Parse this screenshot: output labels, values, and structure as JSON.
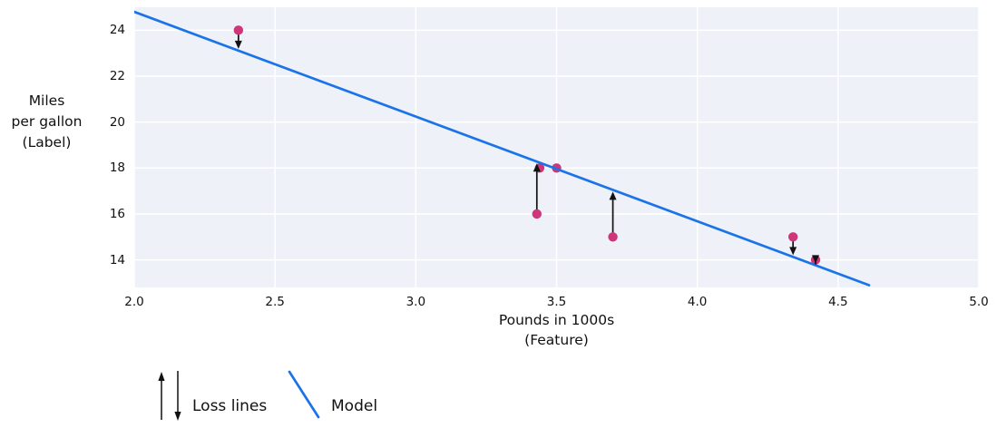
{
  "chart_data": {
    "type": "scatter",
    "title": "",
    "xlabel_lines": [
      "Pounds in 1000s",
      "(Feature)"
    ],
    "ylabel_lines": [
      "Miles",
      "per gallon",
      "(Label)"
    ],
    "xlim": [
      2.0,
      5.0
    ],
    "ylim": [
      12.8,
      25.0
    ],
    "grid": true,
    "xticks": [
      {
        "value": 2.0,
        "label": "2.0"
      },
      {
        "value": 2.5,
        "label": "2.5"
      },
      {
        "value": 3.0,
        "label": "3.0"
      },
      {
        "value": 3.5,
        "label": "3.5"
      },
      {
        "value": 4.0,
        "label": "4.0"
      },
      {
        "value": 4.5,
        "label": "4.5"
      },
      {
        "value": 5.0,
        "label": "5.0"
      }
    ],
    "yticks": [
      {
        "value": 14,
        "label": "14"
      },
      {
        "value": 16,
        "label": "16"
      },
      {
        "value": 18,
        "label": "18"
      },
      {
        "value": 20,
        "label": "20"
      },
      {
        "value": 22,
        "label": "22"
      },
      {
        "value": 24,
        "label": "24"
      }
    ],
    "points": [
      {
        "x": 2.37,
        "y": 24
      },
      {
        "x": 3.43,
        "y": 16
      },
      {
        "x": 3.44,
        "y": 18
      },
      {
        "x": 3.5,
        "y": 18
      },
      {
        "x": 3.7,
        "y": 15
      },
      {
        "x": 4.34,
        "y": 15
      },
      {
        "x": 4.42,
        "y": 14
      }
    ],
    "model_line": {
      "x1": 2.0,
      "y1": 24.8,
      "x2": 4.61,
      "y2": 12.9
    },
    "loss_lines": [
      {
        "x": 2.37,
        "y_from": 24,
        "y_to": 23.11,
        "direction": "down"
      },
      {
        "x": 3.43,
        "y_from": 16,
        "y_to": 18.28,
        "direction": "up"
      },
      {
        "x": 3.7,
        "y_from": 15,
        "y_to": 17.05,
        "direction": "up"
      },
      {
        "x": 4.34,
        "y_from": 15,
        "y_to": 14.13,
        "direction": "down"
      },
      {
        "x": 4.42,
        "y_from": 14,
        "y_to": 13.77,
        "direction": "down"
      }
    ],
    "legend": {
      "position": "below-left",
      "items": [
        {
          "symbol": "loss-arrows",
          "label": "Loss lines"
        },
        {
          "symbol": "model-line",
          "label": "Model"
        }
      ]
    },
    "colors": {
      "point": "#d0357a",
      "model_line": "#1a73e8",
      "loss_arrow": "#111111",
      "plot_background": "#eef1f7",
      "gridline": "#ffffff",
      "text": "#111111"
    }
  }
}
